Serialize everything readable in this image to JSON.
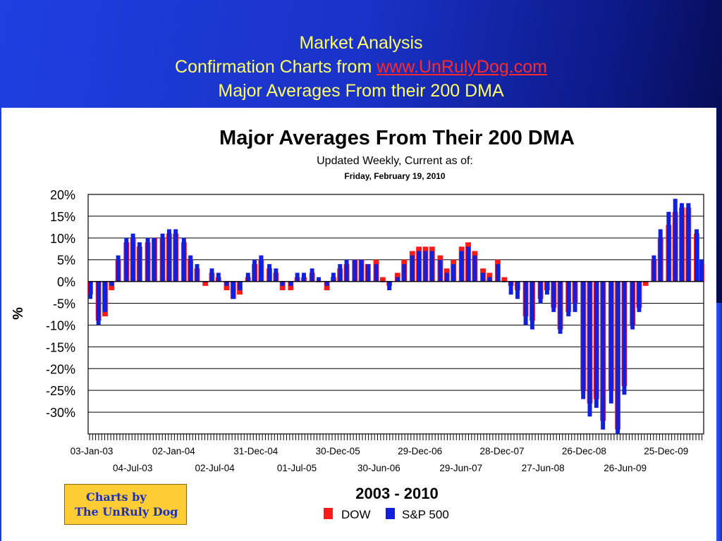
{
  "slide": {
    "title_line1": "Market Analysis",
    "title_line2_prefix": "Confirmation Charts from ",
    "title_link": "www.UnRulyDog.com",
    "title_line3": "Major Averages From their 200 DMA"
  },
  "chart_header": {
    "title": "Major Averages From Their 200 DMA",
    "subtitle": "Updated Weekly, Current as of:",
    "date": "Friday, February 19, 2010",
    "period": "2003 - 2010"
  },
  "credit": {
    "line1": "Charts by",
    "line2": "The UnRuly Dog"
  },
  "colors": {
    "dow": "#ff1a1a",
    "sp500": "#1020dd",
    "grid": "#000000",
    "accent": "#ffff66",
    "link": "#ff2a2a"
  },
  "chart_data": {
    "type": "bar",
    "ylabel": "%",
    "ylim": [
      -35,
      20
    ],
    "y_ticks": [
      20,
      15,
      10,
      5,
      0,
      -5,
      -10,
      -15,
      -20,
      -25,
      -30
    ],
    "y_tick_labels": [
      "20%",
      "15%",
      "10%",
      "5%",
      "0%",
      "-5%",
      "-10%",
      "-15%",
      "-20%",
      "-25%",
      "-30%"
    ],
    "x_tick_labels_row1": [
      "03-Jan-03",
      "02-Jan-04",
      "31-Dec-04",
      "30-Dec-05",
      "29-Dec-06",
      "28-Dec-07",
      "26-Dec-08",
      "25-Dec-09"
    ],
    "x_tick_labels_row2": [
      "04-Jul-03",
      "02-Jul-04",
      "01-Jul-05",
      "30-Jun-06",
      "29-Jun-07",
      "27-Jun-08",
      "26-Jun-09"
    ],
    "x": [
      "2003-01-03",
      "2003-02-07",
      "2003-03-07",
      "2003-04-04",
      "2003-05-02",
      "2003-06-06",
      "2003-07-04",
      "2003-08-01",
      "2003-09-05",
      "2003-10-03",
      "2003-11-07",
      "2003-12-05",
      "2004-01-02",
      "2004-02-06",
      "2004-03-05",
      "2004-04-02",
      "2004-05-07",
      "2004-06-04",
      "2004-07-02",
      "2004-08-06",
      "2004-09-03",
      "2004-10-01",
      "2004-11-05",
      "2004-12-03",
      "2004-12-31",
      "2005-02-04",
      "2005-03-04",
      "2005-04-01",
      "2005-05-06",
      "2005-06-03",
      "2005-07-01",
      "2005-08-05",
      "2005-09-02",
      "2005-10-07",
      "2005-11-04",
      "2005-12-02",
      "2005-12-30",
      "2006-02-03",
      "2006-03-03",
      "2006-03-31",
      "2006-05-05",
      "2006-06-02",
      "2006-06-30",
      "2006-08-04",
      "2006-09-01",
      "2006-10-06",
      "2006-11-03",
      "2006-12-01",
      "2006-12-29",
      "2007-02-02",
      "2007-03-02",
      "2007-03-30",
      "2007-05-04",
      "2007-06-01",
      "2007-06-29",
      "2007-08-03",
      "2007-08-31",
      "2007-10-05",
      "2007-11-02",
      "2007-11-30",
      "2007-12-28",
      "2008-02-01",
      "2008-02-29",
      "2008-04-04",
      "2008-05-02",
      "2008-05-30",
      "2008-06-27",
      "2008-08-01",
      "2008-08-29",
      "2008-10-03",
      "2008-10-31",
      "2008-11-28",
      "2008-12-26",
      "2009-01-30",
      "2009-02-27",
      "2009-03-27",
      "2009-05-01",
      "2009-05-29",
      "2009-06-26",
      "2009-07-31",
      "2009-08-28",
      "2009-10-02",
      "2009-10-30",
      "2009-11-27",
      "2009-12-25",
      "2010-01-29",
      "2010-02-19"
    ],
    "series": [
      {
        "name": "DOW",
        "values": [
          -3,
          -9,
          -8,
          -2,
          5,
          9,
          10,
          8,
          9,
          10,
          10,
          11,
          11,
          9,
          5,
          3,
          -1,
          2,
          1,
          -2,
          -4,
          -3,
          1,
          4,
          5,
          3,
          2,
          -2,
          -2,
          1,
          1,
          2,
          0,
          -2,
          1,
          3,
          4,
          5,
          5,
          4,
          5,
          1,
          -1,
          2,
          5,
          7,
          8,
          8,
          8,
          6,
          3,
          5,
          8,
          9,
          7,
          3,
          2,
          5,
          1,
          -1,
          -2,
          -8,
          -9,
          -4,
          -2,
          -6,
          -11,
          -7,
          -5,
          -25,
          -28,
          -27,
          -32,
          -25,
          -34,
          -24,
          -10,
          -6,
          -1,
          5,
          10,
          13,
          16,
          17,
          17,
          11,
          4
        ]
      },
      {
        "name": "S&P 500",
        "values": [
          -4,
          -10,
          -7,
          -1,
          6,
          10,
          11,
          9,
          10,
          10,
          11,
          12,
          12,
          10,
          6,
          4,
          0,
          3,
          2,
          -1,
          -4,
          -2,
          2,
          5,
          6,
          4,
          3,
          -1,
          -1,
          2,
          2,
          3,
          1,
          -1,
          2,
          4,
          5,
          5,
          5,
          4,
          4,
          0,
          -2,
          1,
          4,
          6,
          7,
          7,
          7,
          5,
          2,
          4,
          7,
          8,
          6,
          2,
          1,
          4,
          0,
          -3,
          -4,
          -10,
          -11,
          -5,
          -3,
          -7,
          -12,
          -8,
          -7,
          -27,
          -31,
          -29,
          -34,
          -28,
          -35,
          -26,
          -11,
          -7,
          0,
          6,
          12,
          16,
          19,
          18,
          18,
          12,
          5
        ]
      }
    ],
    "legend": {
      "position": "bottom-center",
      "entries": [
        "DOW",
        "S&P 500"
      ]
    },
    "grid": true
  }
}
